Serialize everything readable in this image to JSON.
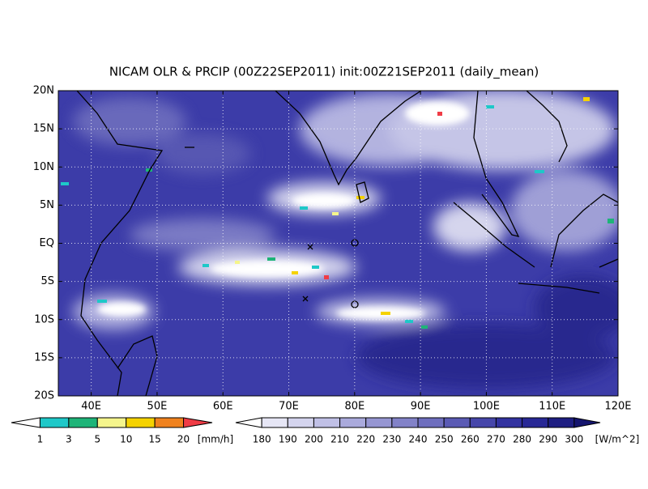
{
  "title": "NICAM OLR & PRCIP (00Z22SEP2011) init:00Z21SEP2011 (daily_mean)",
  "x_axis": {
    "labels": [
      "40E",
      "50E",
      "60E",
      "70E",
      "80E",
      "90E",
      "100E",
      "110E",
      "120E"
    ]
  },
  "y_axis": {
    "labels": [
      "20N",
      "15N",
      "10N",
      "5N",
      "EQ",
      "5S",
      "10S",
      "15S",
      "20S"
    ]
  },
  "precip_scale": {
    "labels": [
      "1",
      "3",
      "5",
      "10",
      "15",
      "20"
    ],
    "unit": "[mm/h]",
    "colors": [
      "#ffffff",
      "#1ec8c8",
      "#1eb478",
      "#f5f58c",
      "#f5d200",
      "#f0821e",
      "#f03c46"
    ]
  },
  "olr_scale": {
    "labels": [
      "180",
      "190",
      "200",
      "210",
      "220",
      "230",
      "240",
      "250",
      "260",
      "270",
      "280",
      "290",
      "300"
    ],
    "unit": "[W/m^2]",
    "colors": [
      "#ffffff",
      "#e6e6f5",
      "#d4d4ee",
      "#c0c0e6",
      "#aaaadc",
      "#9696d2",
      "#8282c8",
      "#6e6ebe",
      "#5a5ab4",
      "#4646aa",
      "#3232a0",
      "#282896",
      "#1e1e82",
      "#14146e"
    ]
  }
}
